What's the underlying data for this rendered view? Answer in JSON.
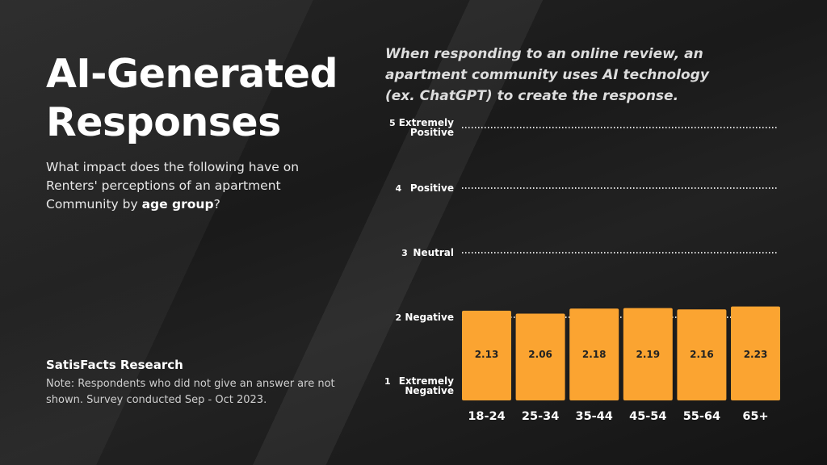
{
  "title_line1": "AI-Generated",
  "title_line2": "Responses",
  "subtitle_pre": "What impact does the following have on Renters' perceptions of an apartment Community by ",
  "subtitle_bold": "age group",
  "subtitle_post": "?",
  "source": "SatisFacts Research",
  "note": "Note: Respondents who did not give an answer are not shown. Survey conducted Sep - Oct 2023.",
  "colors": {
    "bar": "#FBA431",
    "bar_label": "#222222"
  },
  "chart_data": {
    "type": "bar",
    "title": "When responding to an online review, an apartment community uses AI technology (ex. ChatGPT) to create the response.",
    "categories": [
      "18-24",
      "25-34",
      "35-44",
      "45-54",
      "55-64",
      "65+"
    ],
    "values": [
      2.13,
      2.06,
      2.18,
      2.19,
      2.16,
      2.23
    ],
    "value_labels": [
      "2.13",
      "2.06",
      "2.18",
      "2.19",
      "2.16",
      "2.23"
    ],
    "yticks": [
      {
        "value": 5,
        "num": "5",
        "label": [
          "Extremely",
          "Positive"
        ]
      },
      {
        "value": 4,
        "num": "4",
        "label": [
          "Positive"
        ]
      },
      {
        "value": 3,
        "num": "3",
        "label": [
          "Neutral"
        ]
      },
      {
        "value": 2,
        "num": "2",
        "label": [
          "Negative"
        ]
      },
      {
        "value": 1,
        "num": "1",
        "label": [
          "Extremely",
          "Negative"
        ]
      }
    ],
    "ylim": [
      1,
      5
    ],
    "grid": "dotted"
  }
}
